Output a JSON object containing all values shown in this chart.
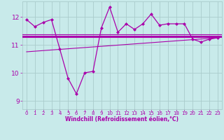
{
  "background_color": "#c8eaea",
  "grid_color": "#aacccc",
  "line_color": "#aa00aa",
  "xlabel": "Windchill (Refroidissement éolien,°C)",
  "ylim": [
    8.7,
    12.55
  ],
  "xlim": [
    -0.5,
    23.5
  ],
  "yticks": [
    9,
    10,
    11,
    12
  ],
  "xticks": [
    0,
    1,
    2,
    3,
    4,
    5,
    6,
    7,
    8,
    9,
    10,
    11,
    12,
    13,
    14,
    15,
    16,
    17,
    18,
    19,
    20,
    21,
    22,
    23
  ],
  "windchill_x": [
    0,
    1,
    2,
    3,
    4,
    5,
    6,
    7,
    8,
    9,
    10,
    11,
    12,
    13,
    14,
    15,
    16,
    17,
    18,
    19,
    20,
    21,
    22,
    23
  ],
  "windchill_y": [
    11.9,
    11.65,
    11.8,
    11.9,
    10.85,
    9.8,
    9.25,
    10.0,
    10.05,
    11.6,
    12.35,
    11.45,
    11.75,
    11.55,
    11.75,
    12.1,
    11.7,
    11.75,
    11.75,
    11.75,
    11.2,
    11.1,
    11.2,
    11.25
  ],
  "hline1_y": 11.3,
  "hline2_y": 11.28,
  "hline3_y": 11.38,
  "trend_x": [
    0,
    23
  ],
  "trend_y": [
    10.75,
    11.25
  ]
}
